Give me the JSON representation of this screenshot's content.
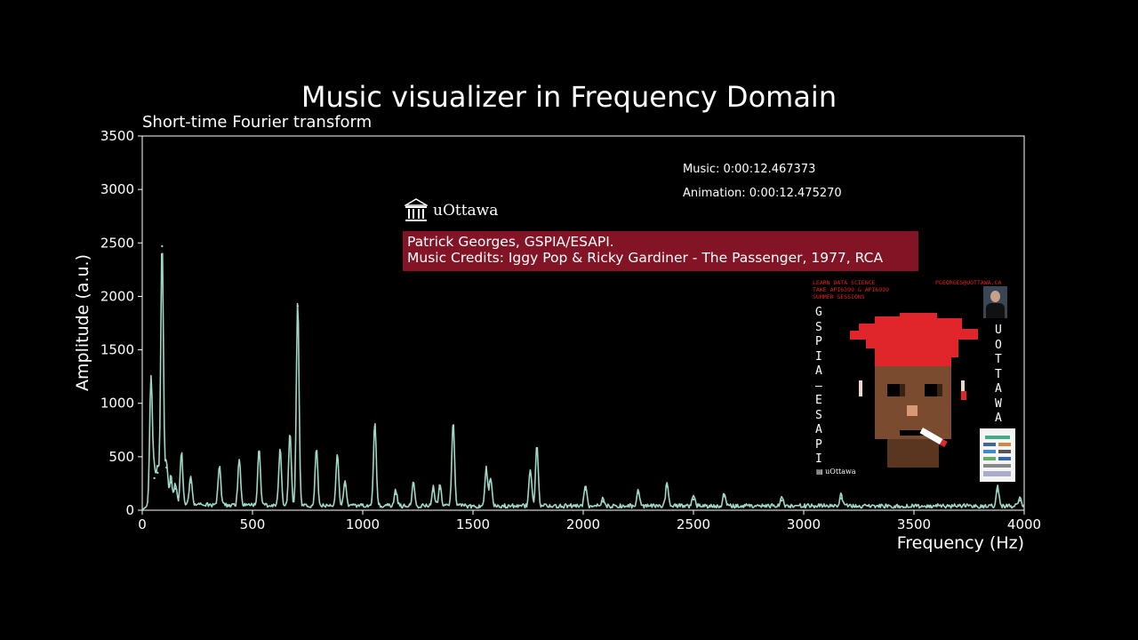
{
  "chart_data": {
    "type": "line",
    "title": "Music visualizer in Frequency Domain",
    "subtitle": "Short-time Fourier transform",
    "xlabel": "Frequency (Hz)",
    "ylabel": "Amplitude (a.u.)",
    "xlim": [
      0,
      4000
    ],
    "ylim": [
      0,
      3500
    ],
    "xticks": [
      "0",
      "500",
      "1000",
      "1500",
      "2000",
      "2500",
      "3000",
      "3500",
      "4000"
    ],
    "yticks": [
      "0",
      "500",
      "1000",
      "1500",
      "2000",
      "2500",
      "3000",
      "3500"
    ],
    "grid": false,
    "line_color": "#9fd8c8",
    "baseline": 40,
    "peaks": [
      {
        "x": 40,
        "y": 1180
      },
      {
        "x": 55,
        "y": 300
      },
      {
        "x": 70,
        "y": 350
      },
      {
        "x": 90,
        "y": 2470
      },
      {
        "x": 110,
        "y": 400
      },
      {
        "x": 130,
        "y": 260
      },
      {
        "x": 150,
        "y": 200
      },
      {
        "x": 178,
        "y": 490
      },
      {
        "x": 220,
        "y": 260
      },
      {
        "x": 350,
        "y": 370
      },
      {
        "x": 440,
        "y": 440
      },
      {
        "x": 530,
        "y": 550
      },
      {
        "x": 625,
        "y": 540
      },
      {
        "x": 670,
        "y": 690
      },
      {
        "x": 705,
        "y": 1910
      },
      {
        "x": 790,
        "y": 550
      },
      {
        "x": 885,
        "y": 500
      },
      {
        "x": 920,
        "y": 230
      },
      {
        "x": 1055,
        "y": 780
      },
      {
        "x": 1150,
        "y": 150
      },
      {
        "x": 1230,
        "y": 230
      },
      {
        "x": 1320,
        "y": 180
      },
      {
        "x": 1350,
        "y": 200
      },
      {
        "x": 1410,
        "y": 790
      },
      {
        "x": 1560,
        "y": 360
      },
      {
        "x": 1580,
        "y": 270
      },
      {
        "x": 1760,
        "y": 350
      },
      {
        "x": 1790,
        "y": 560
      },
      {
        "x": 2010,
        "y": 190
      },
      {
        "x": 2090,
        "y": 80
      },
      {
        "x": 2250,
        "y": 160
      },
      {
        "x": 2380,
        "y": 220
      },
      {
        "x": 2500,
        "y": 100
      },
      {
        "x": 2640,
        "y": 130
      },
      {
        "x": 2900,
        "y": 90
      },
      {
        "x": 3170,
        "y": 110
      },
      {
        "x": 3880,
        "y": 180
      },
      {
        "x": 3980,
        "y": 90
      }
    ]
  },
  "overlay": {
    "music_time": "Music: 0:00:12.467373",
    "animation_time": "Animation: 0:00:12.475270",
    "logo_text": "uOttawa",
    "credit_line1": "Patrick Georges, GSPIA/ESAPI.",
    "credit_line2": "Music Credits: Iggy Pop & Ricky Gardiner - The Passenger, 1977, RCA"
  },
  "poster": {
    "red_lines": [
      "LEARN DATA SCIENCE",
      "TAKE API6399 & API6999",
      "SUMMER SESSIONS"
    ],
    "email": "PGEORGES@UOTTAWA.CA",
    "left_letters": [
      "G",
      "S",
      "P",
      "I",
      "A",
      "—",
      "E",
      "S",
      "A",
      "P",
      "I"
    ],
    "right_letters": [
      "U",
      "O",
      "T",
      "T",
      "A",
      "W",
      "A"
    ],
    "logo_text": "uOttawa"
  },
  "colors": {
    "background": "#000000",
    "credit_bg": "#a0192d",
    "accent_red": "#e02020"
  }
}
